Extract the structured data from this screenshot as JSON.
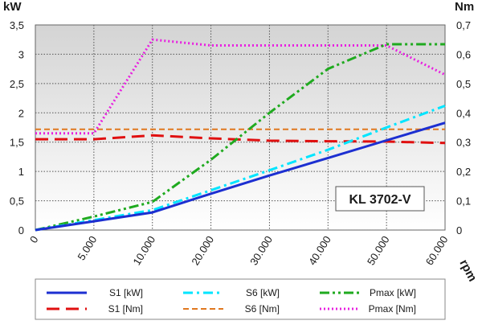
{
  "chart_data": {
    "type": "line",
    "left_axis_unit": "kW",
    "right_axis_unit": "Nm",
    "x_axis_unit": "rpm",
    "model_label": "KL 3702-V",
    "categories": [
      "0",
      "5.000",
      "10.000",
      "20.000",
      "30.000",
      "40.000",
      "50.000",
      "60.000"
    ],
    "y_left_ticks": [
      "0",
      "0,5",
      "1",
      "1,5",
      "2",
      "2,5",
      "3",
      "3,5"
    ],
    "y_right_ticks": [
      "0",
      "0,1",
      "0,2",
      "0,3",
      "0,4",
      "0,5",
      "0,6",
      "0,7"
    ],
    "ylim_left": [
      0,
      3.5
    ],
    "ylim_right": [
      0,
      0.7
    ],
    "grid": true,
    "legend_position": "bottom",
    "series": [
      {
        "name": "S1 [kW]",
        "axis": "left",
        "color": "#1c2fd1",
        "style": "solid",
        "values": [
          0,
          0.15,
          0.3,
          0.62,
          0.93,
          1.23,
          1.53,
          1.83
        ]
      },
      {
        "name": "S6 [kW]",
        "axis": "left",
        "color": "#00e5ff",
        "style": "dashdot",
        "values": [
          0,
          0.17,
          0.34,
          0.68,
          1.02,
          1.37,
          1.75,
          2.12
        ]
      },
      {
        "name": "Pmax [kW]",
        "axis": "left",
        "color": "#1faa1f",
        "style": "dashdot2",
        "values": [
          0,
          0.23,
          0.48,
          1.2,
          2.0,
          2.75,
          3.17,
          3.17
        ]
      },
      {
        "name": "S1 [Nm]",
        "axis": "right",
        "color": "#e01010",
        "style": "longdash",
        "values": [
          0.31,
          0.31,
          0.323,
          0.313,
          0.305,
          0.303,
          0.302,
          0.297
        ]
      },
      {
        "name": "S6 [Nm]",
        "axis": "right",
        "color": "#e07820",
        "style": "dash",
        "values": [
          0.344,
          0.344,
          0.344,
          0.344,
          0.344,
          0.344,
          0.344,
          0.344
        ]
      },
      {
        "name": "Pmax [Nm]",
        "axis": "right",
        "color": "#e820e0",
        "style": "dot",
        "values": [
          0.33,
          0.33,
          0.65,
          0.63,
          0.63,
          0.63,
          0.63,
          0.53
        ]
      }
    ]
  }
}
